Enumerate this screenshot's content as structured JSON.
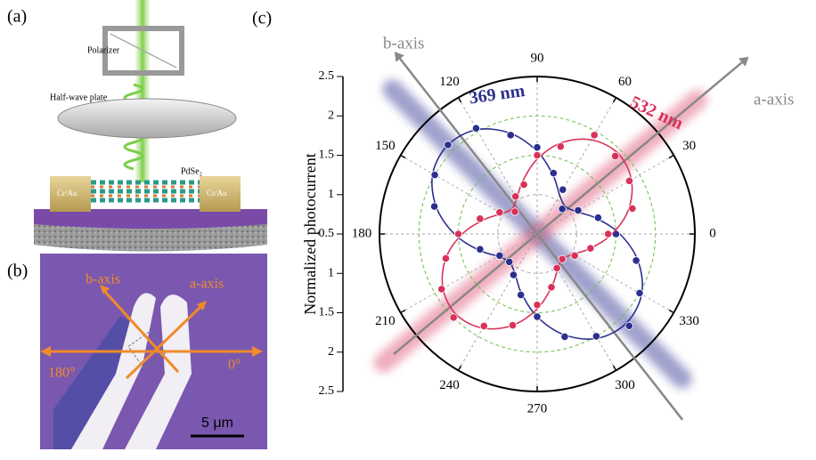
{
  "panel_a": {
    "label": "(a)",
    "polarizer": "Polarizer",
    "half_wave_plate": "Half-wave plate",
    "material": "PdSe₂",
    "electrode_left": "Cr/Au",
    "electrode_right": "Cr/Au"
  },
  "panel_b": {
    "label": "(b)",
    "b_axis": "b-axis",
    "a_axis": "a-axis",
    "angle_left": "180°",
    "angle_right": "0°",
    "scale_bar": "5 μm"
  },
  "chart_data": {
    "type": "polar",
    "label": "(c)",
    "ylabel": "Normalized photocurrent",
    "rlim": [
      0.5,
      2.5
    ],
    "rticks": [
      0.5,
      1.0,
      1.5,
      2.0,
      2.5
    ],
    "angle_ticks": [
      0,
      30,
      60,
      90,
      120,
      150,
      180,
      210,
      240,
      270,
      300,
      330
    ],
    "theta": [
      0,
      15,
      30,
      45,
      60,
      75,
      90,
      105,
      120,
      135,
      150,
      165,
      180,
      195,
      210,
      225,
      240,
      255,
      270,
      285,
      300,
      315,
      330,
      345
    ],
    "series": [
      {
        "name": "369 nm",
        "color": "#2b2f8f",
        "values": [
          1.5,
          1.3,
          1.1,
          0.95,
          1.15,
          1.3,
          1.6,
          1.8,
          2.05,
          2.1,
          2.0,
          1.85,
          1.5,
          1.25,
          1.05,
          1.0,
          1.1,
          1.3,
          1.55,
          1.85,
          2.0,
          2.15,
          2.0,
          1.8
        ],
        "fit": [
          1.55,
          1.275,
          1.07,
          1.0,
          1.07,
          1.275,
          1.55,
          1.825,
          2.03,
          2.1,
          2.03,
          1.825,
          1.55,
          1.275,
          1.07,
          1.0,
          1.07,
          1.275,
          1.55,
          1.825,
          2.03,
          2.1,
          2.03,
          1.825
        ]
      },
      {
        "name": "532 nm",
        "color": "#d8325a",
        "values": [
          1.4,
          1.75,
          1.85,
          1.9,
          1.95,
          1.65,
          1.5,
          1.15,
          1.05,
          0.9,
          1.05,
          1.25,
          1.5,
          1.7,
          1.9,
          2.0,
          1.85,
          1.7,
          1.4,
          1.2,
          1.0,
          0.95,
          1.05,
          1.2
        ],
        "fit": [
          1.45,
          1.7,
          1.88,
          1.95,
          1.88,
          1.7,
          1.45,
          1.2,
          1.02,
          0.95,
          1.02,
          1.2,
          1.45,
          1.7,
          1.88,
          1.95,
          1.88,
          1.7,
          1.45,
          1.2,
          1.02,
          0.95,
          1.02,
          1.2
        ]
      }
    ],
    "a_axis": "a-axis",
    "b_axis": "b-axis"
  }
}
